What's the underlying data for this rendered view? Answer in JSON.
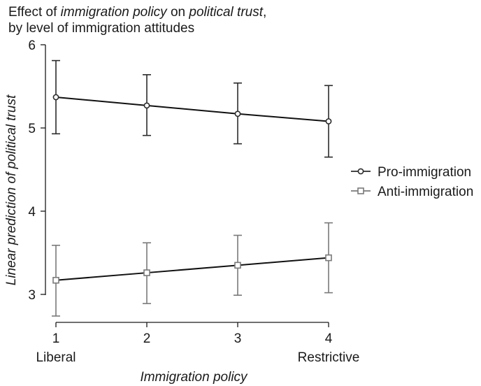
{
  "chart_data": {
    "type": "line",
    "title": {
      "line1": [
        {
          "text": "Effect of ",
          "italic": false
        },
        {
          "text": "immigration policy",
          "italic": true
        },
        {
          "text": " on ",
          "italic": false
        },
        {
          "text": "political trust",
          "italic": true
        },
        {
          "text": ",",
          "italic": false
        }
      ],
      "line2": "by level of immigration attitudes"
    },
    "xlabel": "Immigration policy",
    "ylabel": {
      "prefix": "Linear prediction of ",
      "emphasis": "political trust"
    },
    "x": [
      1,
      2,
      3,
      4
    ],
    "x_tick_labels": [
      "1",
      "2",
      "3",
      "4"
    ],
    "x_tick_sublabels": [
      "Liberal",
      "",
      "",
      "Restrictive"
    ],
    "xlim": [
      1,
      4
    ],
    "ylim": [
      3,
      6
    ],
    "y_ticks": [
      3,
      4,
      5,
      6
    ],
    "grid": false,
    "legend_position": "right",
    "series": [
      {
        "name": "Pro-immigration",
        "marker": "circle",
        "color": "#2b2b2b",
        "values": [
          5.37,
          5.27,
          5.17,
          5.08
        ],
        "ci_low": [
          4.93,
          4.91,
          4.81,
          4.65
        ],
        "ci_high": [
          5.81,
          5.64,
          5.54,
          5.51
        ]
      },
      {
        "name": "Anti-immigration",
        "marker": "square",
        "color": "#7a7a7a",
        "values": [
          3.17,
          3.26,
          3.35,
          3.44
        ],
        "ci_low": [
          2.74,
          2.89,
          2.99,
          3.02
        ],
        "ci_high": [
          3.59,
          3.62,
          3.71,
          3.86
        ]
      }
    ],
    "colors": {
      "axis": "#1a1a1a",
      "pro_immigration": "#2b2b2b",
      "anti_immigration": "#7a7a7a"
    }
  }
}
